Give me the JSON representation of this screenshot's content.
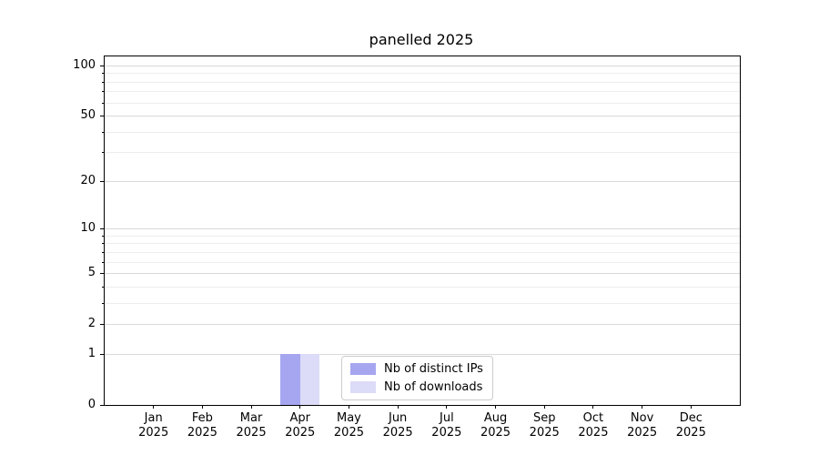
{
  "chart_data": {
    "type": "bar",
    "title": "panelled 2025",
    "categories": [
      "Jan",
      "Feb",
      "Mar",
      "Apr",
      "May",
      "Jun",
      "Jul",
      "Aug",
      "Sep",
      "Oct",
      "Nov",
      "Dec"
    ],
    "tick_year": "2025",
    "series": [
      {
        "name": "Nb of distinct IPs",
        "color": "#a6a6f0",
        "values": [
          0,
          0,
          0,
          1,
          0,
          0,
          0,
          0,
          0,
          0,
          0,
          0
        ]
      },
      {
        "name": "Nb of downloads",
        "color": "#dcdcf8",
        "values": [
          0,
          0,
          0,
          1,
          0,
          0,
          0,
          0,
          0,
          0,
          0,
          0
        ]
      }
    ],
    "xlabel": "",
    "ylabel": "",
    "y_scale": "log10(1+y)",
    "ylim": [
      0,
      113
    ],
    "y_major_ticks": [
      0,
      1,
      2,
      5,
      10,
      20,
      50,
      100
    ],
    "y_major_tick_labels": [
      "0",
      "1",
      "2",
      "5",
      "10",
      "20",
      "50",
      "100"
    ],
    "y_minor_ticks": [
      3,
      4,
      6,
      7,
      8,
      9,
      30,
      40,
      60,
      70,
      80,
      90
    ],
    "grid": "horizontal",
    "legend_position": "lower center"
  }
}
